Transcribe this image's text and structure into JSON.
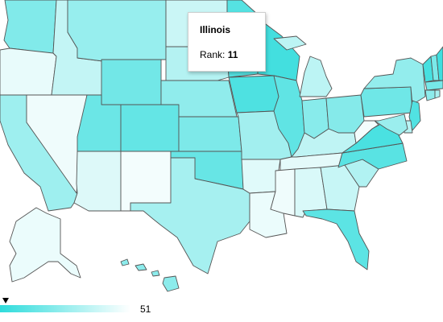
{
  "tooltip": {
    "state": "Illinois",
    "label": "Rank:",
    "value": "11"
  },
  "legend": {
    "max_label": "51",
    "gradient_start": "#2fdcdc",
    "gradient_end": "#ffffff"
  },
  "states": [
    {
      "id": "WA",
      "rank": 20
    },
    {
      "id": "OR",
      "rank": 48
    },
    {
      "id": "CA",
      "rank": 28
    },
    {
      "id": "NV",
      "rank": 50
    },
    {
      "id": "ID",
      "rank": 38
    },
    {
      "id": "MT",
      "rank": 26
    },
    {
      "id": "WY",
      "rank": 16
    },
    {
      "id": "UT",
      "rank": 14
    },
    {
      "id": "AZ",
      "rank": 45
    },
    {
      "id": "CO",
      "rank": 12
    },
    {
      "id": "NM",
      "rank": 51
    },
    {
      "id": "ND",
      "rank": 40
    },
    {
      "id": "SD",
      "rank": 34
    },
    {
      "id": "NE",
      "rank": 24
    },
    {
      "id": "KS",
      "rank": 19
    },
    {
      "id": "OK",
      "rank": 13
    },
    {
      "id": "TX",
      "rank": 30
    },
    {
      "id": "MN",
      "rank": 8
    },
    {
      "id": "IA",
      "rank": 6
    },
    {
      "id": "MO",
      "rank": 29
    },
    {
      "id": "AR",
      "rank": 46
    },
    {
      "id": "LA",
      "rank": 49
    },
    {
      "id": "WI",
      "rank": 3
    },
    {
      "id": "IL",
      "rank": 11
    },
    {
      "id": "MI",
      "rank": 36
    },
    {
      "id": "IN",
      "rank": 22
    },
    {
      "id": "OH",
      "rank": 21
    },
    {
      "id": "KY",
      "rank": 37
    },
    {
      "id": "TN",
      "rank": 47
    },
    {
      "id": "MS",
      "rank": 50
    },
    {
      "id": "AL",
      "rank": 44
    },
    {
      "id": "GA",
      "rank": 39
    },
    {
      "id": "FL",
      "rank": 10
    },
    {
      "id": "SC",
      "rank": 33
    },
    {
      "id": "NC",
      "rank": 9
    },
    {
      "id": "VA",
      "rank": 5
    },
    {
      "id": "WV",
      "rank": 51
    },
    {
      "id": "PA",
      "rank": 15
    },
    {
      "id": "NY",
      "rank": 25
    },
    {
      "id": "NJ",
      "rank": 7
    },
    {
      "id": "DE",
      "rank": 35
    },
    {
      "id": "MD",
      "rank": 27
    },
    {
      "id": "VT",
      "rank": 4
    },
    {
      "id": "NH",
      "rank": 18
    },
    {
      "id": "ME",
      "rank": 2
    },
    {
      "id": "MA",
      "rank": 17
    },
    {
      "id": "CT",
      "rank": 23
    },
    {
      "id": "RI",
      "rank": 31
    },
    {
      "id": "AK",
      "rank": 49
    },
    {
      "id": "HI",
      "rank": 23
    }
  ]
}
